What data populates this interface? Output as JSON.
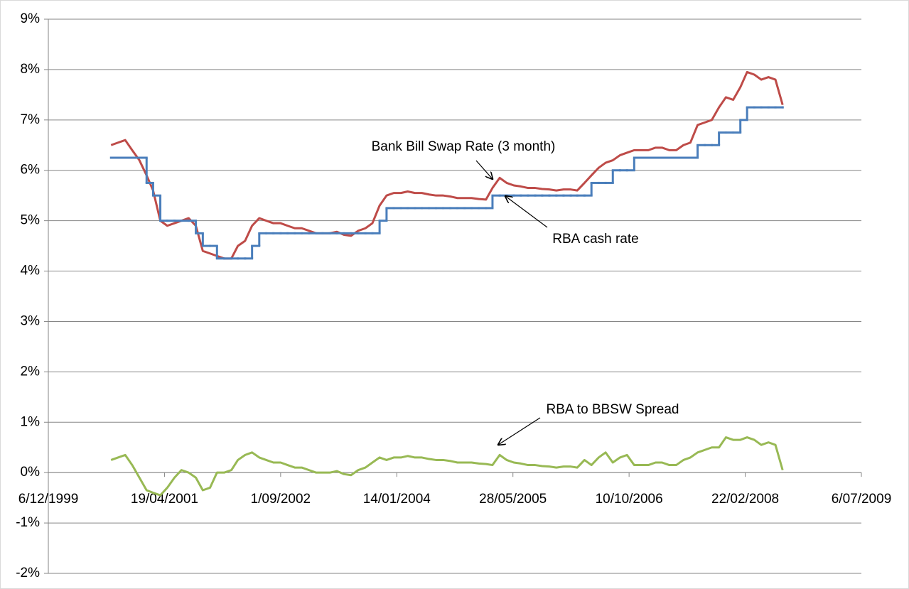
{
  "chart_data": {
    "type": "line",
    "xlim": [
      "1999-12-06",
      "2009-07-06"
    ],
    "xticks": [
      {
        "value": "1999-12-06",
        "label": "6/12/1999"
      },
      {
        "value": "2001-04-19",
        "label": "19/04/2001"
      },
      {
        "value": "2002-09-01",
        "label": "1/09/2002"
      },
      {
        "value": "2004-01-14",
        "label": "14/01/2004"
      },
      {
        "value": "2005-05-28",
        "label": "28/05/2005"
      },
      {
        "value": "2006-10-10",
        "label": "10/10/2006"
      },
      {
        "value": "2008-02-22",
        "label": "22/02/2008"
      },
      {
        "value": "2009-07-06",
        "label": "6/07/2009"
      }
    ],
    "ylim": [
      -2,
      9
    ],
    "yticks": [
      {
        "value": -2,
        "label": "-2%"
      },
      {
        "value": -1,
        "label": "-1%"
      },
      {
        "value": 0,
        "label": "0%"
      },
      {
        "value": 1,
        "label": "1%"
      },
      {
        "value": 2,
        "label": "2%"
      },
      {
        "value": 3,
        "label": "3%"
      },
      {
        "value": 4,
        "label": "4%"
      },
      {
        "value": 5,
        "label": "5%"
      },
      {
        "value": 6,
        "label": "6%"
      },
      {
        "value": 7,
        "label": "7%"
      },
      {
        "value": 8,
        "label": "8%"
      },
      {
        "value": 9,
        "label": "9%"
      }
    ],
    "grid": true,
    "annotations": [
      "Bank Bill Swap Rate (3 month)",
      "RBA cash rate",
      "RBA to BBSW Spread"
    ],
    "x": [
      "2000-09-01",
      "2000-10-01",
      "2000-11-01",
      "2000-12-01",
      "2001-01-01",
      "2001-02-01",
      "2001-03-01",
      "2001-04-01",
      "2001-05-01",
      "2001-06-01",
      "2001-07-01",
      "2001-08-01",
      "2001-09-01",
      "2001-10-01",
      "2001-11-01",
      "2001-12-01",
      "2002-01-01",
      "2002-02-01",
      "2002-03-01",
      "2002-04-01",
      "2002-05-01",
      "2002-06-01",
      "2002-07-01",
      "2002-08-01",
      "2002-09-01",
      "2002-10-01",
      "2002-11-01",
      "2002-12-01",
      "2003-01-01",
      "2003-02-01",
      "2003-03-01",
      "2003-04-01",
      "2003-05-01",
      "2003-06-01",
      "2003-07-01",
      "2003-08-01",
      "2003-09-01",
      "2003-10-01",
      "2003-11-01",
      "2003-12-01",
      "2004-01-01",
      "2004-02-01",
      "2004-03-01",
      "2004-04-01",
      "2004-05-01",
      "2004-06-01",
      "2004-07-01",
      "2004-08-01",
      "2004-09-01",
      "2004-10-01",
      "2004-11-01",
      "2004-12-01",
      "2005-01-01",
      "2005-02-01",
      "2005-03-01",
      "2005-04-01",
      "2005-05-01",
      "2005-06-01",
      "2005-07-01",
      "2005-08-01",
      "2005-09-01",
      "2005-10-01",
      "2005-11-01",
      "2005-12-01",
      "2006-01-01",
      "2006-02-01",
      "2006-03-01",
      "2006-04-01",
      "2006-05-01",
      "2006-06-01",
      "2006-07-01",
      "2006-08-01",
      "2006-09-01",
      "2006-10-01",
      "2006-11-01",
      "2006-12-01",
      "2007-01-01",
      "2007-02-01",
      "2007-03-01",
      "2007-04-01",
      "2007-05-01",
      "2007-06-01",
      "2007-07-01",
      "2007-08-01",
      "2007-09-01",
      "2007-10-01",
      "2007-11-01",
      "2007-12-01",
      "2008-01-01",
      "2008-02-01",
      "2008-03-01",
      "2008-04-01",
      "2008-05-01",
      "2008-06-01",
      "2008-07-01",
      "2008-08-01"
    ],
    "series": [
      {
        "name": "Bank Bill Swap Rate (3 month)",
        "color": "#be4b48",
        "values": [
          6.5,
          6.55,
          6.6,
          6.4,
          6.2,
          5.9,
          5.6,
          5.0,
          4.9,
          4.95,
          5.0,
          5.05,
          4.9,
          4.4,
          4.35,
          4.3,
          4.25,
          4.25,
          4.5,
          4.6,
          4.9,
          5.05,
          5.0,
          4.95,
          4.95,
          4.9,
          4.85,
          4.85,
          4.8,
          4.75,
          4.75,
          4.75,
          4.78,
          4.72,
          4.7,
          4.8,
          4.85,
          4.95,
          5.3,
          5.5,
          5.55,
          5.55,
          5.58,
          5.55,
          5.55,
          5.52,
          5.5,
          5.5,
          5.48,
          5.45,
          5.45,
          5.45,
          5.43,
          5.42,
          5.65,
          5.85,
          5.75,
          5.7,
          5.68,
          5.65,
          5.65,
          5.63,
          5.62,
          5.6,
          5.62,
          5.62,
          5.6,
          5.75,
          5.9,
          6.05,
          6.15,
          6.2,
          6.3,
          6.35,
          6.4,
          6.4,
          6.4,
          6.45,
          6.45,
          6.4,
          6.4,
          6.5,
          6.55,
          6.9,
          6.95,
          7.0,
          7.25,
          7.45,
          7.4,
          7.65,
          7.95,
          7.9,
          7.8,
          7.85,
          7.8,
          7.3
        ]
      },
      {
        "name": "RBA cash rate",
        "color": "#4a7ebb",
        "step": true,
        "values": [
          6.25,
          6.25,
          6.25,
          6.25,
          6.25,
          5.75,
          5.5,
          5.0,
          5.0,
          5.0,
          5.0,
          5.0,
          4.75,
          4.5,
          4.5,
          4.25,
          4.25,
          4.25,
          4.25,
          4.25,
          4.5,
          4.75,
          4.75,
          4.75,
          4.75,
          4.75,
          4.75,
          4.75,
          4.75,
          4.75,
          4.75,
          4.75,
          4.75,
          4.75,
          4.75,
          4.75,
          4.75,
          4.75,
          5.0,
          5.25,
          5.25,
          5.25,
          5.25,
          5.25,
          5.25,
          5.25,
          5.25,
          5.25,
          5.25,
          5.25,
          5.25,
          5.25,
          5.25,
          5.25,
          5.5,
          5.5,
          5.5,
          5.5,
          5.5,
          5.5,
          5.5,
          5.5,
          5.5,
          5.5,
          5.5,
          5.5,
          5.5,
          5.5,
          5.75,
          5.75,
          5.75,
          6.0,
          6.0,
          6.0,
          6.25,
          6.25,
          6.25,
          6.25,
          6.25,
          6.25,
          6.25,
          6.25,
          6.25,
          6.5,
          6.5,
          6.5,
          6.75,
          6.75,
          6.75,
          7.0,
          7.25,
          7.25,
          7.25,
          7.25,
          7.25,
          7.25
        ]
      },
      {
        "name": "RBA to BBSW Spread",
        "color": "#98b954",
        "values": [
          0.25,
          0.3,
          0.35,
          0.15,
          -0.1,
          -0.35,
          -0.4,
          -0.45,
          -0.3,
          -0.1,
          0.05,
          0.0,
          -0.1,
          -0.35,
          -0.3,
          0.0,
          0.0,
          0.05,
          0.25,
          0.35,
          0.4,
          0.3,
          0.25,
          0.2,
          0.2,
          0.15,
          0.1,
          0.1,
          0.05,
          0.0,
          0.0,
          0.0,
          0.03,
          -0.03,
          -0.05,
          0.05,
          0.1,
          0.2,
          0.3,
          0.25,
          0.3,
          0.3,
          0.33,
          0.3,
          0.3,
          0.27,
          0.25,
          0.25,
          0.23,
          0.2,
          0.2,
          0.2,
          0.18,
          0.17,
          0.15,
          0.35,
          0.25,
          0.2,
          0.18,
          0.15,
          0.15,
          0.13,
          0.12,
          0.1,
          0.12,
          0.12,
          0.1,
          0.25,
          0.15,
          0.3,
          0.4,
          0.2,
          0.3,
          0.35,
          0.15,
          0.15,
          0.15,
          0.2,
          0.2,
          0.15,
          0.15,
          0.25,
          0.3,
          0.4,
          0.45,
          0.5,
          0.5,
          0.7,
          0.65,
          0.65,
          0.7,
          0.65,
          0.55,
          0.6,
          0.55,
          0.05
        ]
      }
    ]
  }
}
